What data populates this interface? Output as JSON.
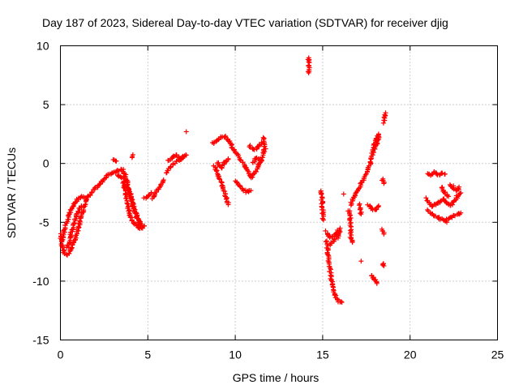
{
  "chart_data": {
    "type": "scatter",
    "title": "Day 187 of 2023, Sidereal Day-to-day VTEC variation (SDTVAR) for receiver djig",
    "xlabel": "GPS time / hours",
    "ylabel": "SDTVAR / TECUs",
    "xlim": [
      0,
      25
    ],
    "ylim": [
      -15,
      10
    ],
    "xticks": [
      0,
      5,
      10,
      15,
      20,
      25
    ],
    "xtick_labels": [
      "0",
      "5",
      "10",
      "15",
      "20",
      "25"
    ],
    "yticks": [
      -15,
      -10,
      -5,
      0,
      5,
      10
    ],
    "ytick_labels": [
      "-15",
      "-10",
      "-5",
      "0",
      "5",
      "10"
    ],
    "grid": true,
    "marker": "+",
    "color": "#ff0000",
    "series": [
      {
        "name": "SDTVAR",
        "segments": [
          [
            [
              0.0,
              -6.0
            ],
            [
              0.1,
              -7.0
            ],
            [
              0.2,
              -7.6
            ],
            [
              0.35,
              -7.8
            ],
            [
              0.5,
              -7.6
            ],
            [
              0.7,
              -7.0
            ],
            [
              0.9,
              -6.2
            ],
            [
              1.1,
              -5.0
            ],
            [
              1.3,
              -4.0
            ],
            [
              1.5,
              -3.0
            ],
            [
              1.7,
              -2.6
            ],
            [
              1.9,
              -2.3
            ],
            [
              2.1,
              -2.0
            ],
            [
              2.4,
              -1.5
            ],
            [
              2.7,
              -1.0
            ],
            [
              3.0,
              -0.8
            ],
            [
              3.3,
              -0.6
            ],
            [
              3.6,
              -0.5
            ]
          ],
          [
            [
              0.1,
              -6.5
            ],
            [
              0.25,
              -5.5
            ],
            [
              0.4,
              -4.8
            ],
            [
              0.6,
              -4.0
            ],
            [
              0.8,
              -3.4
            ],
            [
              1.0,
              -3.0
            ],
            [
              1.2,
              -2.8
            ],
            [
              1.4,
              -2.9
            ]
          ],
          [
            [
              0.4,
              -7.2
            ],
            [
              0.6,
              -6.0
            ],
            [
              0.8,
              -5.0
            ],
            [
              1.0,
              -4.2
            ],
            [
              1.2,
              -3.6
            ]
          ],
          [
            [
              3.3,
              -1.0
            ],
            [
              3.5,
              -1.2
            ],
            [
              3.8,
              -1.8
            ],
            [
              4.0,
              -2.8
            ],
            [
              4.2,
              -3.8
            ],
            [
              4.4,
              -4.6
            ],
            [
              4.6,
              -5.2
            ]
          ],
          [
            [
              3.5,
              -0.6
            ],
            [
              3.7,
              -1.0
            ],
            [
              3.9,
              -2.0
            ],
            [
              4.1,
              -3.2
            ],
            [
              4.3,
              -4.3
            ],
            [
              4.5,
              -5.0
            ],
            [
              4.7,
              -5.5
            ]
          ],
          [
            [
              3.6,
              -1.5
            ],
            [
              3.7,
              -2.5
            ],
            [
              3.85,
              -3.6
            ],
            [
              4.0,
              -4.5
            ],
            [
              4.2,
              -5.1
            ],
            [
              4.4,
              -5.4
            ],
            [
              4.6,
              -5.5
            ],
            [
              4.8,
              -5.3
            ]
          ],
          [
            [
              3.0,
              0.3
            ],
            [
              3.2,
              0.2
            ]
          ],
          [
            [
              4.1,
              0.7
            ],
            [
              4.1,
              0.5
            ]
          ],
          [
            [
              4.8,
              -3.0
            ],
            [
              5.0,
              -2.7
            ],
            [
              5.2,
              -2.5
            ]
          ],
          [
            [
              5.3,
              -3.0
            ],
            [
              5.5,
              -2.4
            ],
            [
              5.7,
              -2.0
            ],
            [
              5.9,
              -1.4
            ]
          ],
          [
            [
              6.1,
              -0.8
            ],
            [
              6.3,
              -0.3
            ],
            [
              6.5,
              0.0
            ],
            [
              6.8,
              0.3
            ],
            [
              7.0,
              0.5
            ],
            [
              7.2,
              0.7
            ]
          ],
          [
            [
              6.2,
              0.2
            ],
            [
              6.4,
              0.5
            ],
            [
              6.6,
              0.7
            ],
            [
              6.9,
              0.4
            ],
            [
              7.1,
              0.6
            ]
          ],
          [
            [
              7.2,
              2.7
            ]
          ],
          [
            [
              8.7,
              1.7
            ],
            [
              9.0,
              2.0
            ],
            [
              9.2,
              2.2
            ],
            [
              9.4,
              2.3
            ],
            [
              9.6,
              2.0
            ],
            [
              9.8,
              1.5
            ],
            [
              10.0,
              1.0
            ],
            [
              10.3,
              0.4
            ],
            [
              10.6,
              -0.4
            ],
            [
              10.9,
              -1.2
            ],
            [
              11.2,
              -0.6
            ],
            [
              11.5,
              0.3
            ],
            [
              11.7,
              1.3
            ],
            [
              11.6,
              2.2
            ]
          ],
          [
            [
              9.0,
              0.1
            ],
            [
              9.2,
              -0.4
            ],
            [
              9.4,
              0.1
            ],
            [
              9.6,
              0.4
            ]
          ],
          [
            [
              8.8,
              -0.2
            ],
            [
              9.0,
              -0.8
            ],
            [
              9.2,
              -1.6
            ],
            [
              9.4,
              -2.6
            ],
            [
              9.6,
              -3.5
            ]
          ],
          [
            [
              10.0,
              -1.5
            ],
            [
              10.3,
              -2.0
            ],
            [
              10.6,
              -2.4
            ],
            [
              10.9,
              -2.3
            ]
          ],
          [
            [
              10.8,
              1.5
            ],
            [
              11.0,
              1.2
            ],
            [
              11.3,
              1.3
            ],
            [
              11.5,
              1.8
            ]
          ],
          [
            [
              11.0,
              0.0
            ],
            [
              11.2,
              0.5
            ],
            [
              11.5,
              0.2
            ]
          ],
          [
            [
              14.2,
              9.0
            ],
            [
              14.2,
              8.7
            ],
            [
              14.2,
              7.7
            ]
          ],
          [
            [
              14.9,
              -2.3
            ],
            [
              14.95,
              -3.0
            ],
            [
              15.0,
              -3.8
            ],
            [
              15.05,
              -4.8
            ]
          ],
          [
            [
              15.2,
              -5.8
            ],
            [
              15.4,
              -6.3
            ],
            [
              15.6,
              -6.2
            ],
            [
              15.8,
              -5.9
            ],
            [
              16.0,
              -5.5
            ]
          ],
          [
            [
              15.2,
              -6.6
            ],
            [
              15.3,
              -7.6
            ],
            [
              15.4,
              -8.8
            ],
            [
              15.5,
              -10.0
            ],
            [
              15.6,
              -10.8
            ],
            [
              15.7,
              -11.2
            ],
            [
              15.9,
              -11.7
            ],
            [
              16.1,
              -11.8
            ]
          ],
          [
            [
              15.4,
              -6.9
            ],
            [
              15.6,
              -6.6
            ],
            [
              15.8,
              -6.1
            ]
          ],
          [
            [
              15.9,
              -6.3
            ],
            [
              16.0,
              -5.8
            ]
          ],
          [
            [
              16.2,
              -2.6
            ]
          ],
          [
            [
              16.6,
              -3.5
            ],
            [
              16.8,
              -2.7
            ],
            [
              17.0,
              -2.3
            ],
            [
              17.3,
              -1.5
            ],
            [
              17.5,
              -0.8
            ],
            [
              17.7,
              -0.1
            ],
            [
              17.8,
              0.5
            ],
            [
              17.9,
              1.2
            ],
            [
              18.0,
              1.8
            ],
            [
              18.2,
              2.5
            ]
          ],
          [
            [
              16.5,
              -4.0
            ],
            [
              16.6,
              -5.0
            ],
            [
              16.6,
              -6.2
            ],
            [
              16.7,
              -6.7
            ]
          ],
          [
            [
              17.1,
              -3.5
            ],
            [
              17.2,
              -4.3
            ]
          ],
          [
            [
              17.6,
              -3.5
            ],
            [
              17.8,
              -3.8
            ],
            [
              18.0,
              -4.0
            ],
            [
              18.2,
              -3.6
            ]
          ],
          [
            [
              17.2,
              -8.3
            ]
          ],
          [
            [
              17.8,
              -9.5
            ],
            [
              18.0,
              -9.9
            ],
            [
              18.1,
              -10.2
            ]
          ],
          [
            [
              18.0,
              1.2
            ],
            [
              18.1,
              1.7
            ],
            [
              18.2,
              2.3
            ]
          ],
          [
            [
              18.4,
              -8.5
            ],
            [
              18.5,
              -8.7
            ]
          ],
          [
            [
              18.4,
              -5.6
            ],
            [
              18.5,
              -6.0
            ]
          ],
          [
            [
              18.4,
              -1.3
            ],
            [
              18.5,
              -1.7
            ]
          ],
          [
            [
              18.5,
              3.5
            ],
            [
              18.55,
              3.9
            ],
            [
              18.6,
              4.3
            ]
          ],
          [
            [
              20.9,
              -3.0
            ],
            [
              21.1,
              -3.4
            ],
            [
              21.3,
              -3.6
            ],
            [
              21.6,
              -3.4
            ],
            [
              21.9,
              -3.0
            ],
            [
              22.1,
              -3.3
            ],
            [
              22.3,
              -3.6
            ],
            [
              22.5,
              -3.2
            ],
            [
              22.7,
              -2.8
            ],
            [
              22.9,
              -2.5
            ]
          ],
          [
            [
              21.0,
              -0.8
            ],
            [
              21.2,
              -1.0
            ],
            [
              21.4,
              -0.7
            ],
            [
              21.6,
              -1.0
            ],
            [
              21.8,
              -0.8
            ],
            [
              22.0,
              -0.9
            ]
          ],
          [
            [
              21.0,
              -4.0
            ],
            [
              21.3,
              -4.3
            ],
            [
              21.6,
              -4.6
            ],
            [
              22.0,
              -4.9
            ],
            [
              22.3,
              -4.6
            ],
            [
              22.6,
              -4.4
            ],
            [
              22.9,
              -4.2
            ]
          ],
          [
            [
              21.8,
              -2.0
            ],
            [
              22.0,
              -2.5
            ],
            [
              22.2,
              -2.8
            ]
          ],
          [
            [
              22.3,
              -1.8
            ],
            [
              22.4,
              -1.9
            ],
            [
              22.5,
              -2.1
            ],
            [
              22.7,
              -2.3
            ],
            [
              22.8,
              -2.0
            ]
          ],
          [
            [
              22.1,
              -5.0
            ]
          ]
        ]
      }
    ]
  }
}
